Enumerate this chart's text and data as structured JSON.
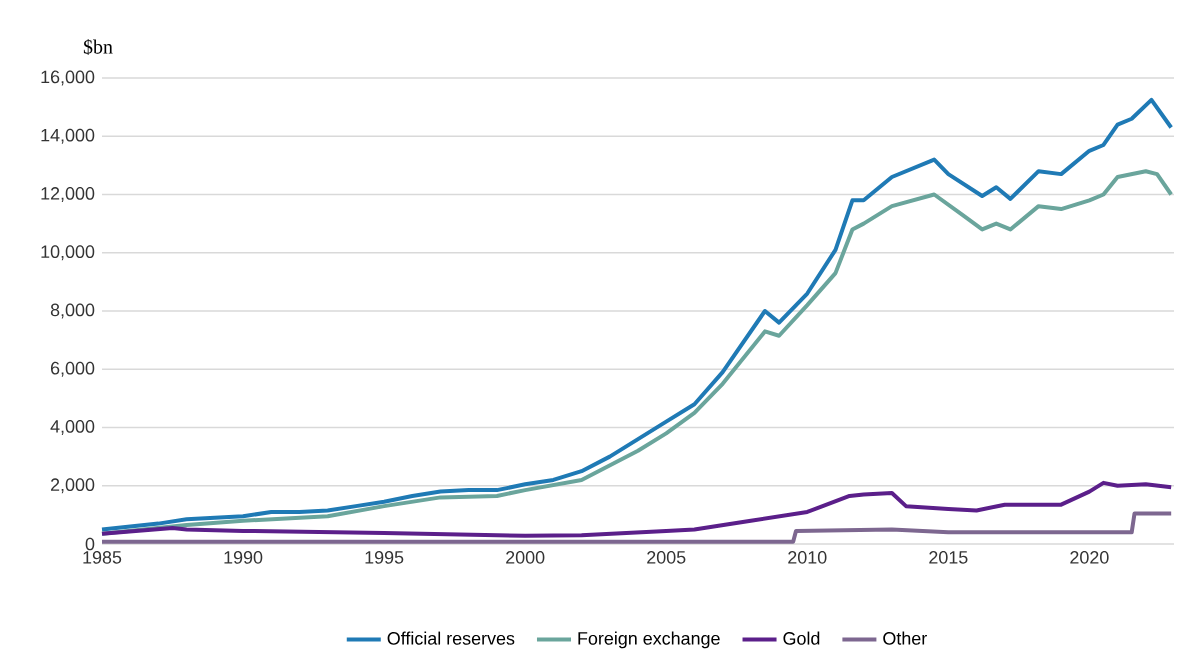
{
  "chart_data": {
    "type": "line",
    "ylabel": "$bn",
    "xlim": [
      1985,
      2023
    ],
    "xticks": [
      1985,
      1990,
      1995,
      2000,
      2005,
      2010,
      2015,
      2020
    ],
    "ylim": [
      0,
      16000
    ],
    "yticks": [
      0,
      {
        "value": 2000,
        "label": "2,000"
      },
      {
        "value": 4000,
        "label": "4,000"
      },
      {
        "value": 6000,
        "label": "6,000"
      },
      {
        "value": 8000,
        "label": "8,000"
      },
      {
        "value": 10000,
        "label": "10,000"
      },
      {
        "value": 12000,
        "label": "12,000"
      },
      {
        "value": 14000,
        "label": "14,000"
      },
      {
        "value": 16000,
        "label": "16,000"
      }
    ],
    "grid": "y",
    "legend": "bottom",
    "series": [
      {
        "name": "Official reserves",
        "color": "#1f7ab5",
        "x": [
          1985,
          1986,
          1987,
          1988,
          1989,
          1990,
          1991,
          1992,
          1993,
          1994,
          1995,
          1996,
          1997,
          1998,
          1999,
          2000,
          2001,
          2002,
          2003,
          2004,
          2005,
          2006,
          2007,
          2008.5,
          2009,
          2010,
          2011,
          2011.6,
          2012,
          2013,
          2014.5,
          2015,
          2016.2,
          2016.7,
          2017.2,
          2018.2,
          2019,
          2020,
          2020.5,
          2021,
          2021.5,
          2022.2,
          2022.9
        ],
        "values": [
          500,
          600,
          700,
          850,
          900,
          950,
          1100,
          1100,
          1150,
          1300,
          1450,
          1650,
          1800,
          1850,
          1850,
          2050,
          2200,
          2500,
          3000,
          3600,
          4200,
          4800,
          5900,
          8000,
          7600,
          8600,
          10100,
          11800,
          11800,
          12600,
          13200,
          12700,
          11950,
          12250,
          11850,
          12800,
          12700,
          13500,
          13700,
          14400,
          14600,
          15250,
          14300
        ]
      },
      {
        "name": "Foreign exchange",
        "color": "#6aa59c",
        "x": [
          1985,
          1988,
          1990,
          1993,
          1995,
          1997,
          1999,
          2000,
          2002,
          2004,
          2005,
          2006,
          2007,
          2008.5,
          2009,
          2010,
          2011,
          2011.6,
          2012,
          2013,
          2014.5,
          2015.5,
          2016.2,
          2016.7,
          2017.2,
          2018.2,
          2019,
          2020,
          2020.5,
          2021,
          2022,
          2022.4,
          2022.9
        ],
        "values": [
          350,
          650,
          800,
          950,
          1300,
          1600,
          1650,
          1850,
          2200,
          3200,
          3800,
          4500,
          5500,
          7300,
          7150,
          8200,
          9300,
          10800,
          11000,
          11600,
          12000,
          11300,
          10800,
          11000,
          10800,
          11600,
          11500,
          11800,
          12000,
          12600,
          12800,
          12700,
          12000
        ]
      },
      {
        "name": "Gold",
        "color": "#5b1f8a",
        "x": [
          1985,
          1987.5,
          1988,
          1990,
          1995,
          2000,
          2002,
          2005,
          2006,
          2008,
          2010,
          2011.5,
          2012,
          2013,
          2013.5,
          2015,
          2016,
          2017,
          2019,
          2020,
          2020.5,
          2021,
          2022,
          2022.9
        ],
        "values": [
          350,
          550,
          500,
          450,
          380,
          280,
          300,
          450,
          500,
          800,
          1100,
          1650,
          1700,
          1750,
          1300,
          1200,
          1150,
          1350,
          1350,
          1800,
          2100,
          2000,
          2050,
          1950
        ]
      },
      {
        "name": "Other",
        "color": "#7d6790",
        "x": [
          1985,
          2009.5,
          2009.6,
          2013,
          2015,
          2021.5,
          2021.6,
          2022.9
        ],
        "values": [
          80,
          80,
          450,
          500,
          400,
          400,
          1050,
          1050
        ]
      }
    ]
  }
}
